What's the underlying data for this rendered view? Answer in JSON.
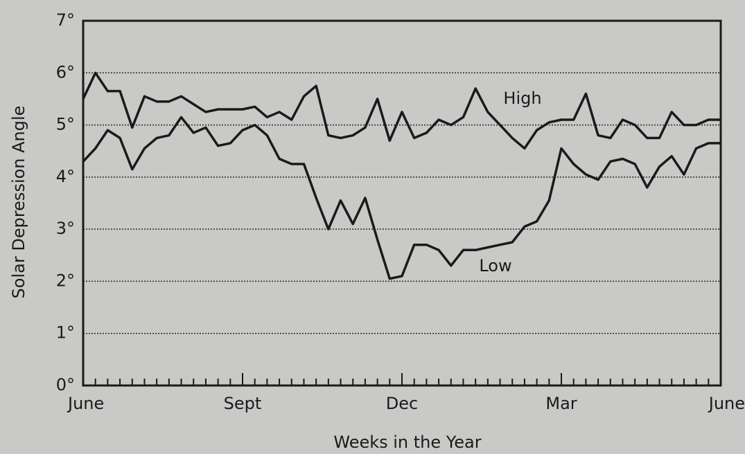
{
  "chart_data": {
    "type": "line",
    "xlabel": "Weeks in the Year",
    "ylabel": "Solar Depression Angle",
    "x": [
      0,
      1,
      2,
      3,
      4,
      5,
      6,
      7,
      8,
      9,
      10,
      11,
      12,
      13,
      14,
      15,
      16,
      17,
      18,
      19,
      20,
      21,
      22,
      23,
      24,
      25,
      26,
      27,
      28,
      29,
      30,
      31,
      32,
      33,
      34,
      35,
      36,
      37,
      38,
      39,
      40,
      41,
      42,
      43,
      44,
      45,
      46,
      47,
      48,
      49,
      50,
      51,
      52
    ],
    "series": [
      {
        "name": "High",
        "color": "#1a1a1a",
        "values": [
          5.5,
          6.0,
          5.65,
          5.65,
          4.95,
          5.55,
          5.45,
          5.45,
          5.55,
          5.4,
          5.25,
          5.3,
          5.3,
          5.3,
          5.35,
          5.15,
          5.25,
          5.1,
          5.55,
          5.75,
          4.8,
          4.75,
          4.8,
          4.95,
          5.5,
          4.7,
          5.25,
          4.75,
          4.85,
          5.1,
          5.0,
          5.15,
          5.7,
          5.25,
          5.0,
          4.75,
          4.55,
          4.9,
          5.05,
          5.1,
          5.1,
          5.6,
          4.8,
          4.75,
          5.1,
          5.0,
          4.75,
          4.75,
          5.25,
          5.0,
          5.0,
          5.1,
          5.1
        ]
      },
      {
        "name": "Low",
        "color": "#1a1a1a",
        "values": [
          4.3,
          4.55,
          4.9,
          4.75,
          4.15,
          4.55,
          4.75,
          4.8,
          5.15,
          4.85,
          4.95,
          4.6,
          4.65,
          4.9,
          5.0,
          4.8,
          4.35,
          4.25,
          4.25,
          3.6,
          3.0,
          3.55,
          3.1,
          3.6,
          2.8,
          2.05,
          2.1,
          2.7,
          2.7,
          2.6,
          2.3,
          2.6,
          2.6,
          2.65,
          2.7,
          2.75,
          3.05,
          3.15,
          3.55,
          4.55,
          4.25,
          4.05,
          3.95,
          4.3,
          4.35,
          4.25,
          3.8,
          4.2,
          4.4,
          4.05,
          4.55,
          4.65,
          4.65
        ]
      }
    ],
    "xlim": [
      0,
      52
    ],
    "xticks": [
      {
        "value": 0,
        "label": "June"
      },
      {
        "value": 13,
        "label": "Sept"
      },
      {
        "value": 26,
        "label": "Dec"
      },
      {
        "value": 39,
        "label": "Mar"
      },
      {
        "value": 52,
        "label": "June"
      }
    ],
    "ylim": [
      0,
      7
    ],
    "yticks": [
      {
        "value": 0,
        "label": "0°"
      },
      {
        "value": 1,
        "label": "1°"
      },
      {
        "value": 2,
        "label": "2°"
      },
      {
        "value": 3,
        "label": "3°"
      },
      {
        "value": 4,
        "label": "4°"
      },
      {
        "value": 5,
        "label": "5°"
      },
      {
        "value": 6,
        "label": "6°"
      },
      {
        "value": 7,
        "label": "7°"
      }
    ],
    "grid": true
  }
}
